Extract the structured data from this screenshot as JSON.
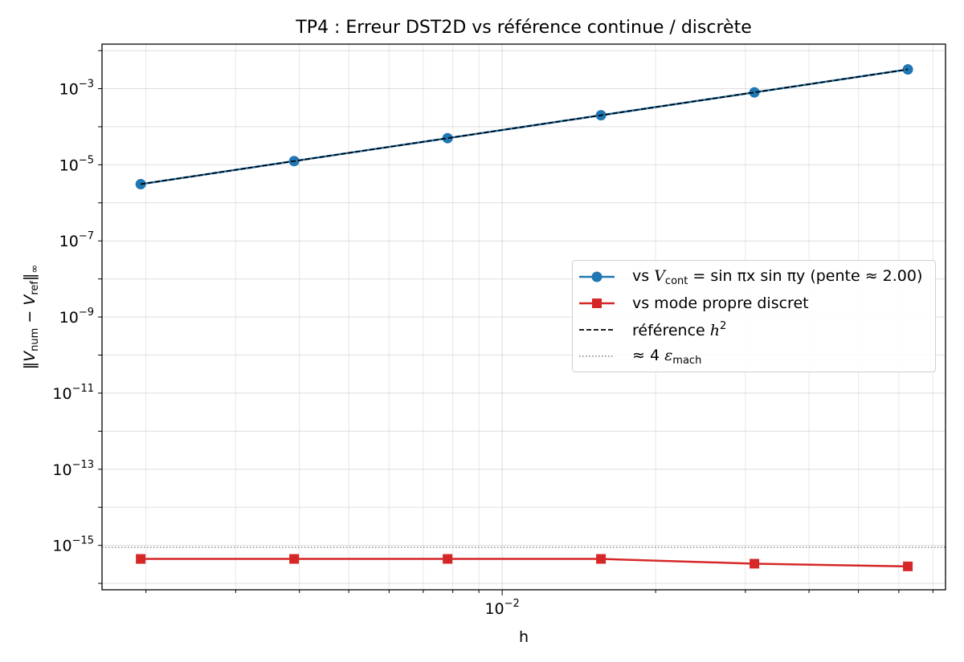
{
  "chart_data": {
    "type": "line",
    "title": "TP4 : Erreur DST2D vs référence continue / discrète",
    "xlabel": "h",
    "ylabel": "‖V_num − V_ref‖_∞",
    "xscale": "log",
    "yscale": "log",
    "xlim": [
      0.00164,
      0.0741
    ],
    "ylim": [
      6.8e-17,
      0.0148
    ],
    "grid": true,
    "x_ticks": [
      {
        "value": 0.01,
        "base": "10",
        "exp": "−2"
      }
    ],
    "y_ticks": [
      {
        "value": 1e-15,
        "base": "10",
        "exp": "−15"
      },
      {
        "value": 1e-13,
        "base": "10",
        "exp": "−13"
      },
      {
        "value": 1e-11,
        "base": "10",
        "exp": "−11"
      },
      {
        "value": 1e-09,
        "base": "10",
        "exp": "−9"
      },
      {
        "value": 1e-07,
        "base": "10",
        "exp": "−7"
      },
      {
        "value": 1e-05,
        "base": "10",
        "exp": "−5"
      },
      {
        "value": 0.001,
        "base": "10",
        "exp": "−3"
      }
    ],
    "x": [
      0.001953125,
      0.00390625,
      0.0078125,
      0.015625,
      0.03125,
      0.0625
    ],
    "series": [
      {
        "name": "vs V_cont = sin πx sin πy (pente ≈ 2.00)",
        "color": "#1f77b4",
        "marker": "circle",
        "values": [
          3.1e-06,
          1.25e-05,
          5e-05,
          0.0002,
          0.0008,
          0.0032
        ]
      },
      {
        "name": "vs mode propre discret",
        "color": "#d62728",
        "marker": "square",
        "values": [
          4.4e-16,
          4.4e-16,
          4.4e-16,
          4.4e-16,
          3.3e-16,
          2.8e-16
        ]
      },
      {
        "name": "référence h^2",
        "color": "#000000",
        "style": "dashed",
        "values": [
          3.1e-06,
          1.25e-05,
          5e-05,
          0.0002,
          0.0008,
          0.0032
        ]
      }
    ],
    "hlines": [
      {
        "name": "≈ 4 ε_mach",
        "value": 8.88e-16,
        "color": "#808080",
        "style": "dotted"
      }
    ],
    "legend": {
      "placement": "center-right",
      "entries": [
        {
          "pre": "vs ",
          "var": "V",
          "sub": "cont",
          "post": " = sin πx sin πy (pente ≈ 2.00)"
        },
        {
          "pre": "vs mode propre discret"
        },
        {
          "pre": "référence ",
          "var": "h",
          "sup": "2"
        },
        {
          "pre": " ≈ 4 ",
          "var": "ε",
          "sub": "mach"
        }
      ]
    }
  }
}
